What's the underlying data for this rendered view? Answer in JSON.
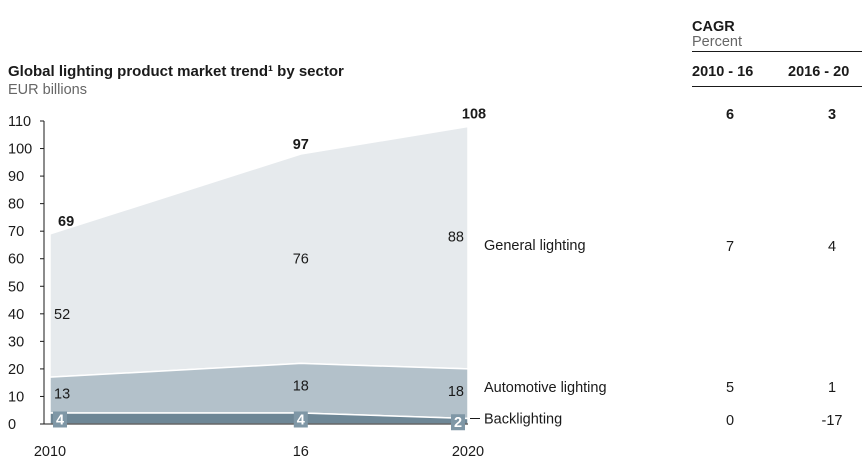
{
  "chart_data": {
    "type": "area",
    "stacked": true,
    "title": "Global lighting product market trend¹ by sector",
    "unit": "EUR billions",
    "x": [
      2010,
      2016,
      2020
    ],
    "x_tick_labels": [
      "2010",
      "16",
      "2020"
    ],
    "ylim": [
      0,
      110
    ],
    "y_ticks": [
      0,
      10,
      20,
      30,
      40,
      50,
      60,
      70,
      80,
      90,
      100,
      110
    ],
    "series": [
      {
        "name": "Backlighting",
        "values": [
          4,
          4,
          2
        ],
        "labels": [
          "4",
          "4",
          "2"
        ],
        "color": "#6e8796"
      },
      {
        "name": "Automotive lighting",
        "values": [
          13,
          18,
          18
        ],
        "labels": [
          "13",
          "18",
          "18"
        ],
        "color": "#b3c1ca"
      },
      {
        "name": "General lighting",
        "values": [
          52,
          76,
          88
        ],
        "labels": [
          "52",
          "76",
          "88"
        ],
        "color": "#e6eaed"
      }
    ],
    "totals": [
      69,
      97,
      108
    ],
    "total_labels": [
      "69",
      "97",
      "108"
    ],
    "grid": false
  },
  "cagr": {
    "title": "CAGR",
    "unit": "Percent",
    "columns": [
      "2010 - 16",
      "2016 - 20"
    ],
    "total": [
      "6",
      "3"
    ],
    "rows": [
      {
        "name": "General lighting",
        "values": [
          "7",
          "4"
        ]
      },
      {
        "name": "Automotive lighting",
        "values": [
          "5",
          "1"
        ]
      },
      {
        "name": "Backlighting",
        "values": [
          "0",
          "-17"
        ]
      }
    ]
  }
}
